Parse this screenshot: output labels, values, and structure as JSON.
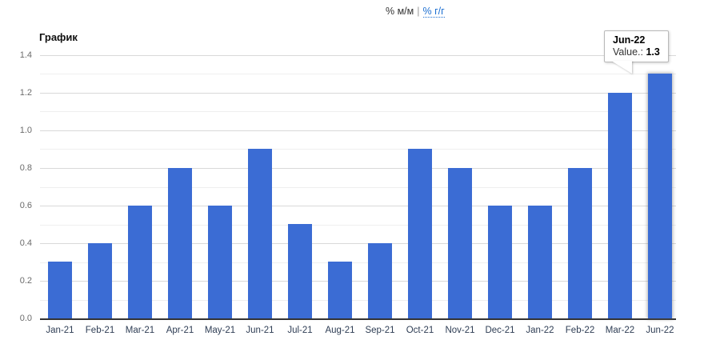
{
  "header": {
    "tab_mm": "% м/м",
    "separator": "|",
    "tab_yy": "% г/г"
  },
  "chart": {
    "title": "График"
  },
  "tooltip": {
    "title": "Jun-22",
    "value_label": "Value.:",
    "value": "1.3"
  },
  "chart_data": {
    "type": "bar",
    "title": "График",
    "categories": [
      "Jan-21",
      "Feb-21",
      "Mar-21",
      "Apr-21",
      "May-21",
      "Jun-21",
      "Jul-21",
      "Aug-21",
      "Sep-21",
      "Oct-21",
      "Nov-21",
      "Dec-21",
      "Jan-22",
      "Feb-22",
      "Mar-22",
      "Jun-22"
    ],
    "values": [
      0.3,
      0.4,
      0.6,
      0.8,
      0.6,
      0.9,
      0.5,
      0.3,
      0.4,
      0.9,
      0.8,
      0.6,
      0.6,
      0.8,
      1.2,
      1.3
    ],
    "xlabel": "",
    "ylabel": "",
    "ylim": [
      0,
      1.4
    ],
    "ytick_step": 0.2,
    "yticks": [
      "0.0",
      "0.2",
      "0.4",
      "0.6",
      "0.8",
      "1.0",
      "1.2",
      "1.4"
    ],
    "grid": true,
    "legend": "none",
    "bar_color": "#3b6cd4",
    "highlighted_category": "Jun-22",
    "highlighted_value": 1.3
  },
  "colors": {
    "bar": "#3b6cd4",
    "link": "#1d6fd1",
    "grid_major": "#d9d9d9",
    "grid_minor": "#efefef",
    "axis_line": "#333333",
    "ylabel_text": "#6b6b6b",
    "xlabel_text": "#2e3d54",
    "tooltip_border": "#b9b9b9"
  }
}
